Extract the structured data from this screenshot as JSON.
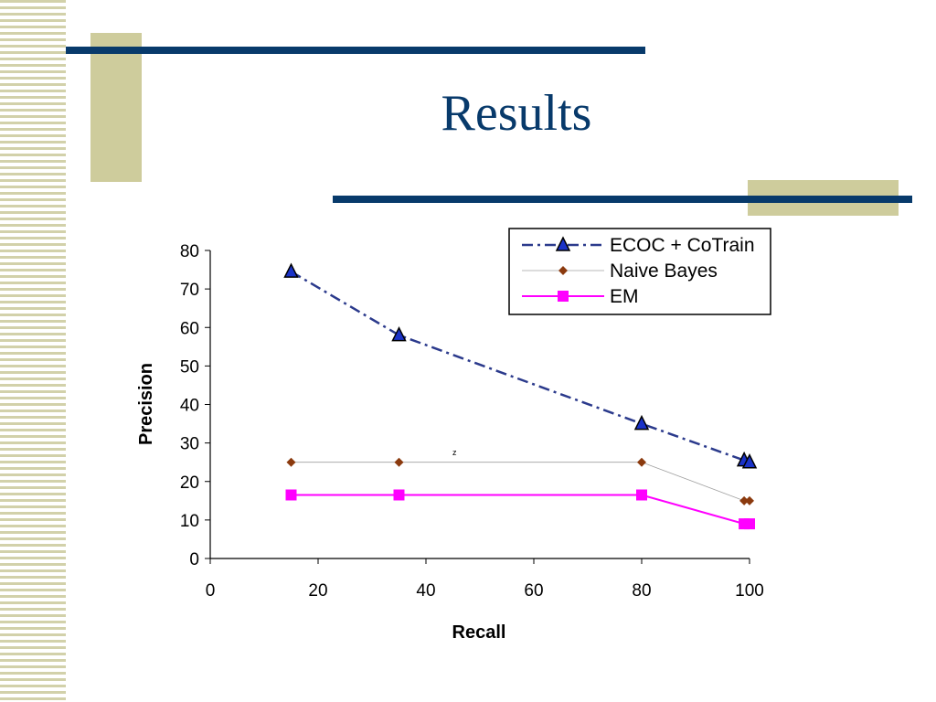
{
  "slide": {
    "title": "Results"
  },
  "chart_data": {
    "type": "line",
    "title": "",
    "xlabel": "Recall",
    "ylabel": "Precision",
    "xlim": [
      0,
      100
    ],
    "ylim": [
      0,
      80
    ],
    "x_ticks": [
      0,
      20,
      40,
      60,
      80,
      100
    ],
    "y_ticks": [
      0,
      10,
      20,
      30,
      40,
      50,
      60,
      70,
      80
    ],
    "grid": false,
    "legend_position": "top-right",
    "annotation": "z",
    "series": [
      {
        "name": "ECOC + CoTrain",
        "color": "#2b3a8c",
        "marker": "triangle",
        "line_style": "dash-dot",
        "x": [
          15,
          35,
          80,
          99,
          100
        ],
        "y": [
          74.5,
          58,
          35,
          25.5,
          25
        ]
      },
      {
        "name": "Naive Bayes",
        "color": "#8b3a0e",
        "marker": "diamond",
        "line_style": "thin",
        "x": [
          15,
          35,
          80,
          99,
          100
        ],
        "y": [
          25,
          25,
          25,
          15,
          15
        ]
      },
      {
        "name": "EM",
        "color": "#ff00ff",
        "marker": "square",
        "line_style": "solid",
        "x": [
          15,
          35,
          80,
          99,
          100
        ],
        "y": [
          16.5,
          16.5,
          16.5,
          9,
          9
        ]
      }
    ]
  }
}
